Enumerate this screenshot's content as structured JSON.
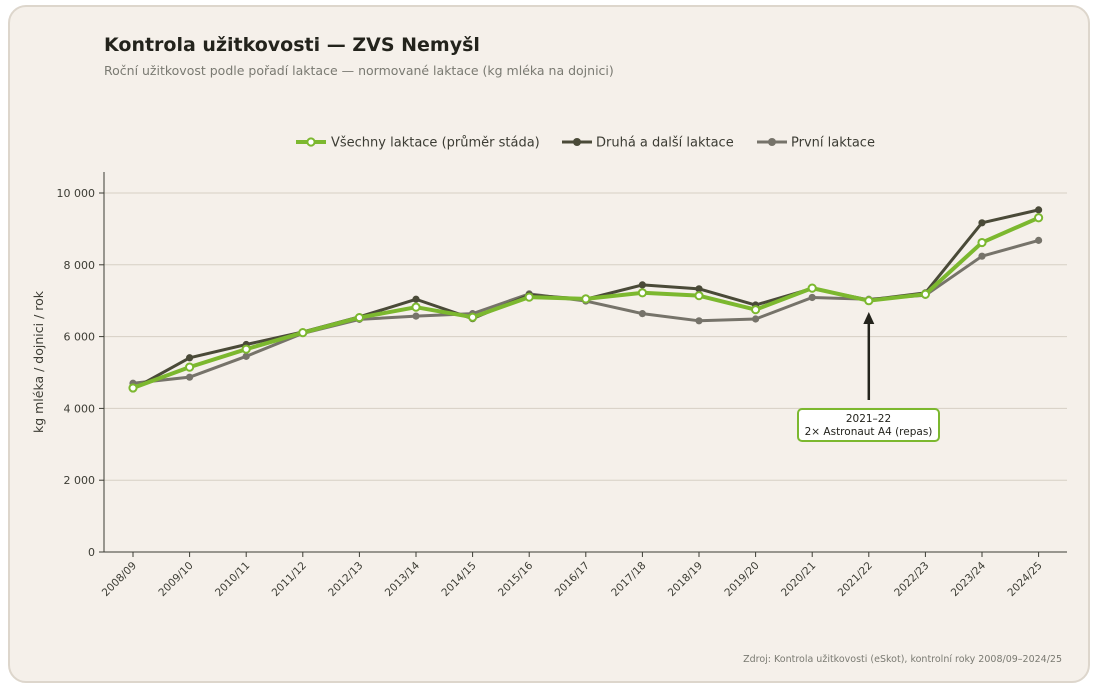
{
  "chart_data": {
    "type": "line",
    "title": "Kontrola užitkovosti — ZVS Nemyšl",
    "subtitle": "Roční užitkovost podle pořadí laktace — normované laktace (kg mléka na dojnici)",
    "ylabel": "kg mléka / dojnici / rok",
    "xlabel": "",
    "ylim": [
      0,
      10000
    ],
    "yticks": [
      0,
      2000,
      4000,
      6000,
      8000,
      10000
    ],
    "ytick_labels": [
      "0",
      "2 000",
      "4 000",
      "6 000",
      "8 000",
      "10 000"
    ],
    "grid": "horizontal",
    "legend_position": "top-center",
    "categories": [
      "2008/09",
      "2009/10",
      "2010/11",
      "2011/12",
      "2012/13",
      "2013/14",
      "2014/15",
      "2015/16",
      "2016/17",
      "2017/18",
      "2018/19",
      "2019/20",
      "2020/21",
      "2021/22",
      "2022/23",
      "2023/24",
      "2024/25"
    ],
    "series": [
      {
        "name": "Všechny laktace (průměr stáda)",
        "color": "#7cb82f",
        "style": "thick-hollow-markers",
        "values": [
          4570,
          5150,
          5650,
          6110,
          6530,
          6820,
          6540,
          7100,
          7050,
          7220,
          7140,
          6750,
          7350,
          7000,
          7180,
          8620,
          9310
        ]
      },
      {
        "name": "Druhá a další laktace",
        "color": "#4a4a38",
        "style": "dark-filled-markers",
        "values": [
          4540,
          5410,
          5780,
          6130,
          6550,
          7040,
          6500,
          7160,
          7040,
          7440,
          7330,
          6880,
          7340,
          7020,
          7220,
          9170,
          9530
        ]
      },
      {
        "name": "První laktace",
        "color": "#76736a",
        "style": "gray-filled-markers",
        "values": [
          4700,
          4870,
          5450,
          6090,
          6480,
          6570,
          6640,
          7190,
          6990,
          6640,
          6440,
          6490,
          7090,
          7040,
          7150,
          8240,
          8680
        ]
      }
    ],
    "annotation": {
      "category": "2021/22",
      "line1": "2021–22",
      "line2": "2× Astronaut A4 (repas)"
    },
    "source": "Zdroj: Kontrola užitkovosti (eSkot), kontrolní roky 2008/09–2024/25"
  }
}
